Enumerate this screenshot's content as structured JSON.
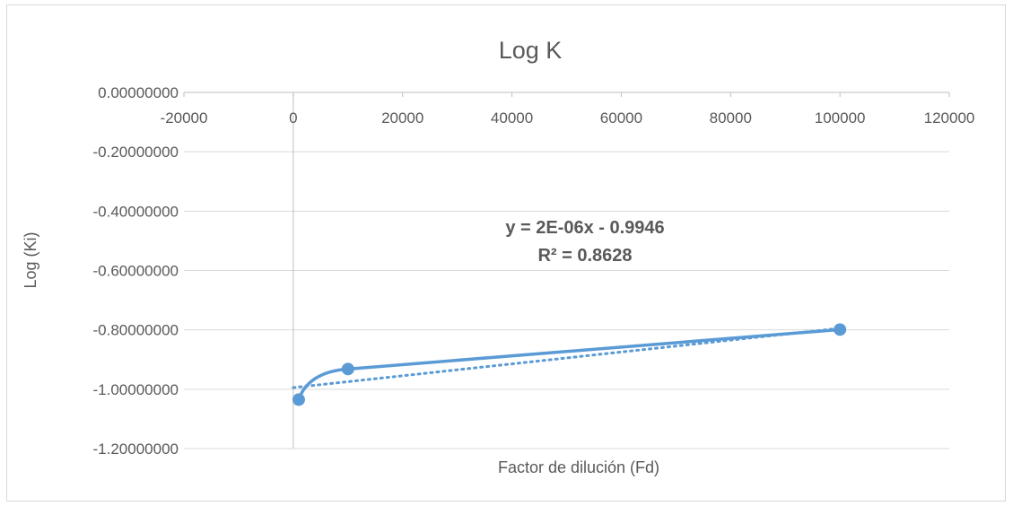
{
  "chart_data": {
    "type": "scatter",
    "title": "Log K",
    "xlabel": "Factor de dilución (Fd)",
    "ylabel": "Log (Ki)",
    "xlim": [
      -20000,
      120000
    ],
    "ylim": [
      -1.2,
      0
    ],
    "x_ticks": [
      -20000,
      0,
      20000,
      40000,
      60000,
      80000,
      100000,
      120000
    ],
    "y_ticks": [
      0,
      -0.2,
      -0.4,
      -0.6,
      -0.8,
      -1.0,
      -1.2
    ],
    "x_tick_labels": [
      "-20000",
      "0",
      "20000",
      "40000",
      "60000",
      "80000",
      "100000",
      "120000"
    ],
    "y_tick_labels": [
      "0.00000000",
      "-0.20000000",
      "-0.40000000",
      "-0.60000000",
      "-0.80000000",
      "-1.00000000",
      "-1.20000000"
    ],
    "grid": true,
    "legend": "none",
    "series": [
      {
        "x": [
          1000,
          10000,
          100000
        ],
        "y": [
          -1.035,
          -0.932,
          -0.799
        ],
        "color": "#5b9bd5",
        "line": "smooth"
      }
    ],
    "trendline": {
      "type": "linear",
      "slope": 2e-06,
      "intercept": -0.9946,
      "x_range": [
        0,
        100000
      ],
      "color": "#5b9bd5",
      "style": "dotted",
      "equation_label": "y = 2E-06x - 0.9946",
      "r2_label": "R² = 0.8628"
    }
  }
}
